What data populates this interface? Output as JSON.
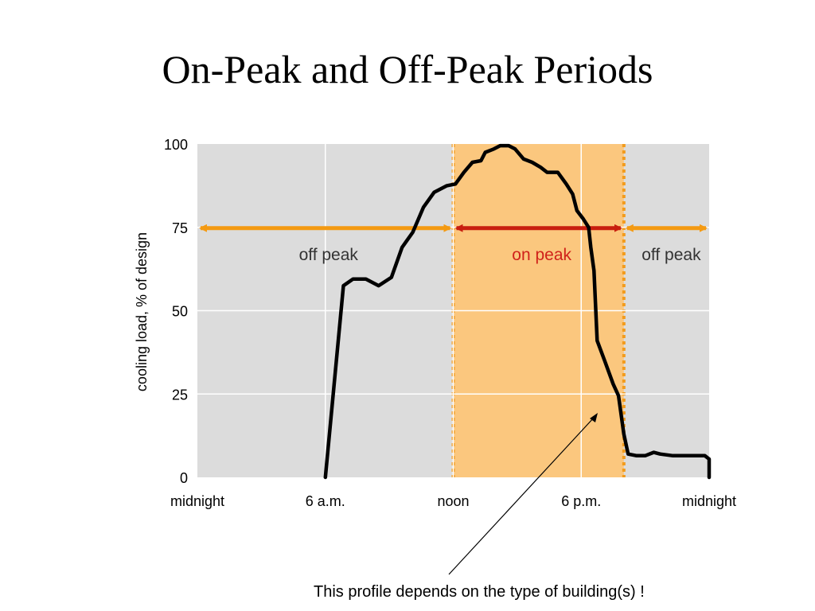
{
  "slide": {
    "title": "On-Peak and Off-Peak Periods",
    "caption": "This profile depends on the type of building(s) !"
  },
  "colors": {
    "plot_background": "#dcdcdc",
    "on_peak_band": "#fbc77e",
    "band_border": "#f29b1d",
    "off_peak_arrow": "#f49a12",
    "on_peak_arrow": "#c81e0f",
    "on_peak_text": "#d0221a",
    "off_peak_text": "#333333",
    "curve": "#000000"
  },
  "chart_data": {
    "type": "line",
    "title": "",
    "xlabel": "",
    "ylabel": "cooling load, % of design",
    "x_unit": "hour of day",
    "xlim": [
      0,
      24
    ],
    "ylim": [
      0,
      100
    ],
    "grid": true,
    "x_ticks": [
      {
        "hour": 0,
        "label": "midnight"
      },
      {
        "hour": 6,
        "label": "6 a.m."
      },
      {
        "hour": 12,
        "label": "noon"
      },
      {
        "hour": 18,
        "label": "6 p.m."
      },
      {
        "hour": 24,
        "label": "midnight"
      }
    ],
    "y_ticks": [
      0,
      25,
      50,
      75,
      100
    ],
    "periods": [
      {
        "label": "off peak",
        "kind": "off",
        "start": 0,
        "end": 12
      },
      {
        "label": "on peak",
        "kind": "on",
        "start": 12,
        "end": 20
      },
      {
        "label": "off peak",
        "kind": "off",
        "start": 20,
        "end": 24
      }
    ],
    "series": [
      {
        "points": [
          [
            6.0,
            0
          ],
          [
            6.85,
            57.5
          ],
          [
            7.3,
            59.5
          ],
          [
            7.9,
            59.5
          ],
          [
            8.5,
            57.5
          ],
          [
            9.1,
            60
          ],
          [
            9.6,
            69
          ],
          [
            10.1,
            73.5
          ],
          [
            10.6,
            81
          ],
          [
            11.1,
            85.5
          ],
          [
            11.7,
            87.5
          ],
          [
            12.1,
            88
          ],
          [
            12.5,
            91.5
          ],
          [
            12.9,
            94.5
          ],
          [
            13.3,
            95
          ],
          [
            13.5,
            97.5
          ],
          [
            13.9,
            98.5
          ],
          [
            14.2,
            99.5
          ],
          [
            14.6,
            99.5
          ],
          [
            14.9,
            98.5
          ],
          [
            15.3,
            95.5
          ],
          [
            15.7,
            94.5
          ],
          [
            16.1,
            93
          ],
          [
            16.4,
            91.5
          ],
          [
            16.9,
            91.5
          ],
          [
            17.3,
            88
          ],
          [
            17.6,
            85
          ],
          [
            17.8,
            80
          ],
          [
            18.1,
            77.5
          ],
          [
            18.35,
            75
          ],
          [
            18.45,
            69
          ],
          [
            18.6,
            62
          ],
          [
            18.75,
            41
          ],
          [
            19.1,
            35
          ],
          [
            19.5,
            28
          ],
          [
            19.75,
            24.5
          ],
          [
            20.0,
            13
          ],
          [
            20.2,
            7
          ],
          [
            20.6,
            6.5
          ],
          [
            21.0,
            6.5
          ],
          [
            21.4,
            7.5
          ],
          [
            21.7,
            7
          ],
          [
            22.3,
            6.5
          ],
          [
            23.0,
            6.5
          ],
          [
            23.8,
            6.5
          ],
          [
            24.0,
            5.5
          ],
          [
            24.0,
            0
          ]
        ]
      }
    ]
  }
}
